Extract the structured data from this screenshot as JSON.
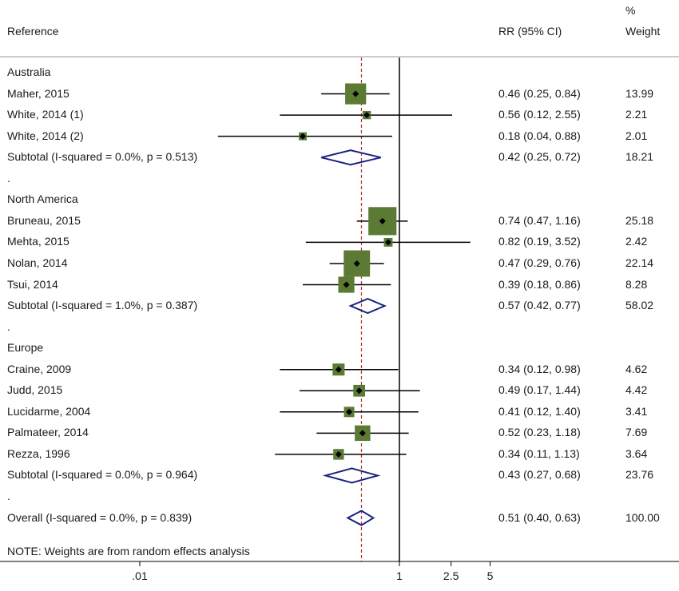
{
  "header": {
    "reference": "Reference",
    "rr": "RR (95% CI)",
    "pct": "%",
    "weight": "Weight"
  },
  "note": "NOTE: Weights are from random effects analysis",
  "chart_data": {
    "type": "forest",
    "xscale": "log",
    "null_line": 1,
    "overall_line": 0.51,
    "xticks": [
      {
        "value": 0.01,
        "label": ".01"
      },
      {
        "value": 1,
        "label": "1"
      },
      {
        "value": 2.5,
        "label": "2.5"
      },
      {
        "value": 5,
        "label": "5"
      }
    ],
    "colors": {
      "box": "#5b7a33",
      "diamond": "#1a237e",
      "ref_line": "#b03030",
      "line": "#000000"
    },
    "rows": [
      {
        "kind": "group",
        "label": "Australia"
      },
      {
        "kind": "study",
        "label": "Maher, 2015",
        "rr": 0.46,
        "lo": 0.25,
        "hi": 0.84,
        "ci": "0.46 (0.25, 0.84)",
        "weight": "13.99"
      },
      {
        "kind": "study",
        "label": "White, 2014 (1)",
        "rr": 0.56,
        "lo": 0.12,
        "hi": 2.55,
        "ci": "0.56 (0.12, 2.55)",
        "weight": "2.21"
      },
      {
        "kind": "study",
        "label": "White, 2014 (2)",
        "rr": 0.18,
        "lo": 0.04,
        "hi": 0.88,
        "ci": "0.18 (0.04, 0.88)",
        "weight": "2.01"
      },
      {
        "kind": "subtotal",
        "label": "Subtotal  (I-squared = 0.0%, p = 0.513)",
        "rr": 0.42,
        "lo": 0.25,
        "hi": 0.72,
        "ci": "0.42 (0.25, 0.72)",
        "weight": "18.21"
      },
      {
        "kind": "dot",
        "label": "."
      },
      {
        "kind": "group",
        "label": "North America"
      },
      {
        "kind": "study",
        "label": "Bruneau, 2015",
        "rr": 0.74,
        "lo": 0.47,
        "hi": 1.16,
        "ci": "0.74 (0.47, 1.16)",
        "weight": "25.18"
      },
      {
        "kind": "study",
        "label": "Mehta, 2015",
        "rr": 0.82,
        "lo": 0.19,
        "hi": 3.52,
        "ci": "0.82 (0.19, 3.52)",
        "weight": "2.42"
      },
      {
        "kind": "study",
        "label": "Nolan, 2014",
        "rr": 0.47,
        "lo": 0.29,
        "hi": 0.76,
        "ci": "0.47 (0.29, 0.76)",
        "weight": "22.14"
      },
      {
        "kind": "study",
        "label": "Tsui, 2014",
        "rr": 0.39,
        "lo": 0.18,
        "hi": 0.86,
        "ci": "0.39 (0.18, 0.86)",
        "weight": "8.28"
      },
      {
        "kind": "subtotal",
        "label": "Subtotal  (I-squared = 1.0%, p = 0.387)",
        "rr": 0.57,
        "lo": 0.42,
        "hi": 0.77,
        "ci": "0.57 (0.42, 0.77)",
        "weight": "58.02"
      },
      {
        "kind": "dot",
        "label": "."
      },
      {
        "kind": "group",
        "label": "Europe"
      },
      {
        "kind": "study",
        "label": "Craine, 2009",
        "rr": 0.34,
        "lo": 0.12,
        "hi": 0.98,
        "ci": "0.34 (0.12, 0.98)",
        "weight": "4.62"
      },
      {
        "kind": "study",
        "label": "Judd, 2015",
        "rr": 0.49,
        "lo": 0.17,
        "hi": 1.44,
        "ci": "0.49 (0.17, 1.44)",
        "weight": "4.42"
      },
      {
        "kind": "study",
        "label": "Lucidarme, 2004",
        "rr": 0.41,
        "lo": 0.12,
        "hi": 1.4,
        "ci": "0.41 (0.12, 1.40)",
        "weight": "3.41"
      },
      {
        "kind": "study",
        "label": "Palmateer, 2014",
        "rr": 0.52,
        "lo": 0.23,
        "hi": 1.18,
        "ci": "0.52 (0.23, 1.18)",
        "weight": "7.69"
      },
      {
        "kind": "study",
        "label": "Rezza, 1996",
        "rr": 0.34,
        "lo": 0.11,
        "hi": 1.13,
        "ci": "0.34 (0.11, 1.13)",
        "weight": "3.64"
      },
      {
        "kind": "subtotal",
        "label": "Subtotal  (I-squared = 0.0%, p = 0.964)",
        "rr": 0.43,
        "lo": 0.27,
        "hi": 0.68,
        "ci": "0.43 (0.27, 0.68)",
        "weight": "23.76"
      },
      {
        "kind": "dot",
        "label": "."
      },
      {
        "kind": "overall",
        "label": "Overall  (I-squared = 0.0%, p = 0.839)",
        "rr": 0.51,
        "lo": 0.4,
        "hi": 0.63,
        "ci": "0.51 (0.40, 0.63)",
        "weight": "100.00"
      }
    ]
  }
}
